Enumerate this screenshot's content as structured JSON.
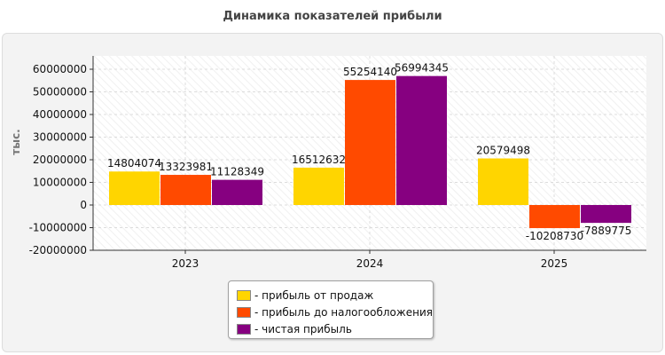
{
  "chart_data": {
    "type": "bar",
    "title": "Динамика показателей прибыли",
    "ylabel": "тыс.",
    "xlabel": "",
    "categories": [
      "2023",
      "2024",
      "2025"
    ],
    "series": [
      {
        "name": "- прибыль от продаж",
        "color": "#ffd500",
        "values": [
          14804074,
          16512632,
          20579498
        ],
        "labels": [
          "14804074",
          "16512632",
          "20579498"
        ]
      },
      {
        "name": "- прибыль до налогообложения",
        "color": "#ff4a00",
        "values": [
          13323981,
          55254140,
          -10208730
        ],
        "labels": [
          "13323981",
          "55254140",
          "-10208730"
        ]
      },
      {
        "name": "- чистая прибыль",
        "color": "#860080",
        "values": [
          11128349,
          56994345,
          -7889775
        ],
        "labels": [
          "11128349",
          "56994345",
          "-7889775"
        ]
      }
    ],
    "ylim": [
      -20000000,
      65000000
    ],
    "yticks": [
      -20000000,
      -10000000,
      0,
      10000000,
      20000000,
      30000000,
      40000000,
      50000000,
      60000000
    ],
    "ytick_labels": [
      "-20000000",
      "-10000000",
      "0",
      "10000000",
      "20000000",
      "30000000",
      "40000000",
      "50000000",
      "60000000"
    ],
    "grid": true,
    "legend": "bottom-center"
  }
}
